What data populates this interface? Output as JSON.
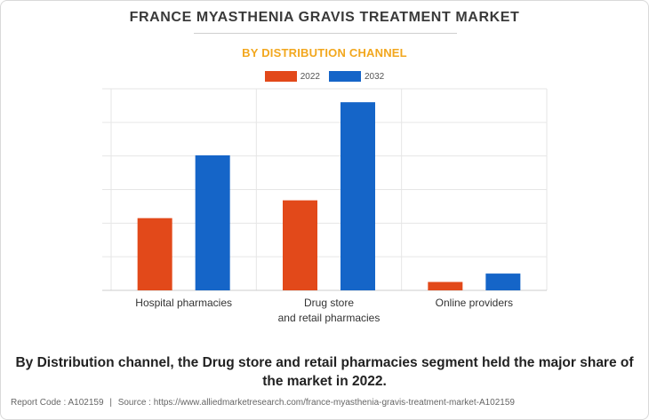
{
  "chart_data": {
    "type": "bar",
    "title": "FRANCE MYASTHENIA GRAVIS TREATMENT MARKET",
    "subtitle": "BY DISTRIBUTION CHANNEL",
    "categories": [
      [
        "Hospital pharmacies"
      ],
      [
        "Drug store",
        "and retail pharmacies"
      ],
      [
        "Online providers"
      ]
    ],
    "series": [
      {
        "name": "2022",
        "color": "#e2491a",
        "values": [
          21.5,
          26.8,
          2.5
        ]
      },
      {
        "name": "2032",
        "color": "#1565c8",
        "values": [
          40.2,
          56.0,
          5.0
        ]
      }
    ],
    "ylim": [
      0,
      60
    ],
    "y_gridlines": [
      10,
      20,
      30,
      40,
      50,
      60
    ],
    "grid": true,
    "y_tick_labels": false,
    "legend_position": "top-center"
  },
  "conclusion": "By Distribution channel, the Drug store and retail pharmacies segment held the major share of the market in 2022.",
  "report_code_label": "Report Code : A102159",
  "separator": "|",
  "source_label": "Source : https://www.alliedmarketresearch.com/france-myasthenia-gravis-treatment-market-A102159"
}
